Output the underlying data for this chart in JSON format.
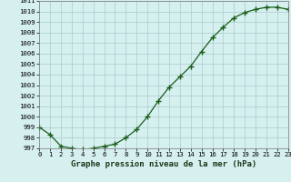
{
  "x": [
    0,
    1,
    2,
    3,
    4,
    5,
    6,
    7,
    8,
    9,
    10,
    11,
    12,
    13,
    14,
    15,
    16,
    17,
    18,
    19,
    20,
    21,
    22,
    23
  ],
  "y": [
    999.0,
    998.3,
    997.2,
    997.0,
    996.9,
    997.0,
    997.2,
    997.4,
    998.0,
    998.8,
    1000.0,
    1001.5,
    1002.8,
    1003.8,
    1004.8,
    1006.2,
    1007.5,
    1008.5,
    1009.4,
    1009.9,
    1010.2,
    1010.4,
    1010.4,
    1010.2
  ],
  "ylim_min": 997,
  "ylim_max": 1011,
  "xlim_min": 0,
  "xlim_max": 23,
  "yticks": [
    997,
    998,
    999,
    1000,
    1001,
    1002,
    1003,
    1004,
    1005,
    1006,
    1007,
    1008,
    1009,
    1010,
    1011
  ],
  "xticks": [
    0,
    1,
    2,
    3,
    4,
    5,
    6,
    7,
    8,
    9,
    10,
    11,
    12,
    13,
    14,
    15,
    16,
    17,
    18,
    19,
    20,
    21,
    22,
    23
  ],
  "line_color": "#1a5e1a",
  "marker": "+",
  "marker_size": 4,
  "marker_linewidth": 1.0,
  "bg_color": "#d6efef",
  "grid_color": "#aacccc",
  "xlabel": "Graphe pression niveau de la mer (hPa)",
  "xlabel_fontsize": 6.5,
  "tick_fontsize": 5.2,
  "line_width": 0.9
}
